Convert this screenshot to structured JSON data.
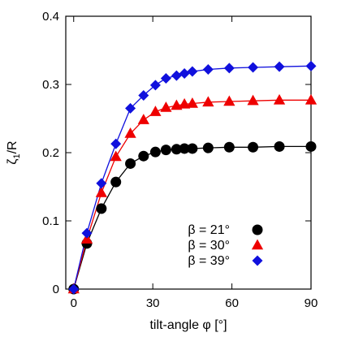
{
  "chart_data": {
    "type": "scatter",
    "title": "",
    "xlabel": "tilt-angle φ [°]",
    "ylabel_main": "ζ",
    "ylabel_sub": "1",
    "ylabel_tail": "/R",
    "xlim": [
      -3,
      90
    ],
    "ylim": [
      0,
      0.4
    ],
    "xticks": [
      0,
      30,
      60,
      90
    ],
    "xtick_labels": [
      "0",
      "30",
      "60",
      "90"
    ],
    "yticks": [
      0,
      0.1,
      0.2,
      0.3,
      0.4
    ],
    "ytick_labels": [
      "0",
      "0.1",
      "0.2",
      "0.3",
      "0.4"
    ],
    "grid": false,
    "legend_position": "bottom-right",
    "series": [
      {
        "name": "β = 21°",
        "color": "#000000",
        "marker": "circle",
        "x": [
          0,
          5,
          10.5,
          16,
          21.5,
          26.5,
          31,
          35,
          39,
          42,
          45,
          51,
          59,
          68,
          78,
          90
        ],
        "y": [
          0,
          0.067,
          0.118,
          0.157,
          0.184,
          0.195,
          0.201,
          0.204,
          0.205,
          0.206,
          0.206,
          0.207,
          0.208,
          0.208,
          0.209,
          0.209
        ]
      },
      {
        "name": "β = 30°",
        "color": "#ee0000",
        "marker": "triangle",
        "x": [
          0,
          5,
          10.5,
          16,
          21.5,
          26.5,
          31,
          35,
          39,
          42,
          45,
          51,
          59,
          68,
          78,
          90
        ],
        "y": [
          0,
          0.073,
          0.141,
          0.194,
          0.228,
          0.248,
          0.26,
          0.266,
          0.269,
          0.271,
          0.272,
          0.274,
          0.275,
          0.276,
          0.277,
          0.277
        ]
      },
      {
        "name": "β = 39°",
        "color": "#1010dd",
        "marker": "diamond",
        "x": [
          0,
          5,
          10.5,
          16,
          21.5,
          26.5,
          31,
          35,
          39,
          42,
          45,
          51,
          59,
          68,
          78,
          90
        ],
        "y": [
          0,
          0.082,
          0.155,
          0.213,
          0.265,
          0.284,
          0.299,
          0.309,
          0.313,
          0.316,
          0.319,
          0.322,
          0.324,
          0.325,
          0.326,
          0.327
        ]
      }
    ]
  }
}
